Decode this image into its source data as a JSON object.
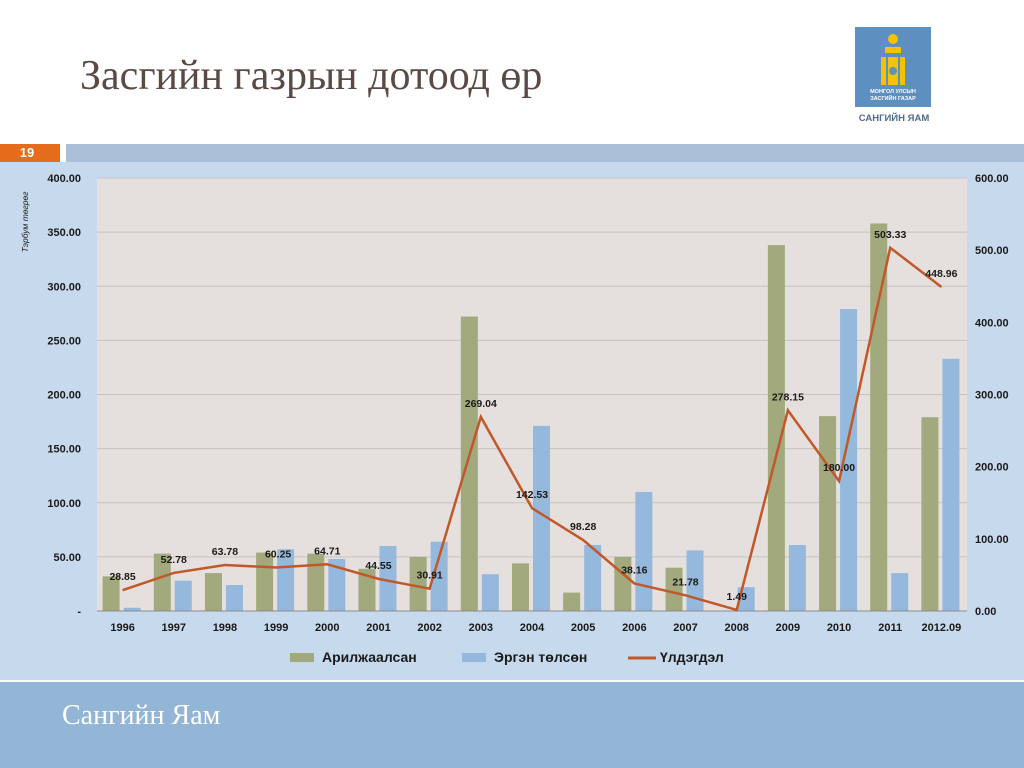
{
  "slide": {
    "title": "Засгийн газрын дотоод өр",
    "slide_number": "19",
    "ministry_caption": "САНГИЙН ЯАМ",
    "emblem_text": [
      "МОНГОЛ УЛСЫН",
      "ЗАСГИЙН ГАЗАР"
    ],
    "footer_text": "Сангийн Яам"
  },
  "colors": {
    "title": "#5b4a44",
    "accent_orange": "#e46c1a",
    "band_blue": "#a9c0d8",
    "chart_bg": "#c7d9ec",
    "plot_bg": "#e5e0dd",
    "footer_bg": "#93b6d6",
    "emblem_bg": "#5e8fc1",
    "series_green": "#a1a97d",
    "series_blue": "#94b9dc",
    "series_orange": "#c0582a"
  },
  "chart_data": {
    "type": "bar",
    "categories": [
      "1996",
      "1997",
      "1998",
      "1999",
      "2000",
      "2001",
      "2002",
      "2003",
      "2004",
      "2005",
      "2006",
      "2007",
      "2008",
      "2009",
      "2010",
      "2011",
      "2012.09"
    ],
    "ylabel": "Тэрбум төгрөг",
    "ylim": [
      0,
      400
    ],
    "y2lim": [
      0,
      600
    ],
    "y_ticks": [
      "-",
      "50.00",
      "100.00",
      "150.00",
      "200.00",
      "250.00",
      "300.00",
      "350.00",
      "400.00"
    ],
    "y2_ticks": [
      "0.00",
      "100.00",
      "200.00",
      "300.00",
      "400.00",
      "500.00",
      "600.00"
    ],
    "legend_position": "bottom",
    "gridlines": true,
    "series": [
      {
        "name": "Арилжаалсан",
        "type": "bar",
        "axis": "left",
        "values": [
          32,
          53,
          35,
          54,
          53,
          39,
          50,
          272,
          44,
          17,
          50,
          40,
          0,
          338,
          180,
          358,
          179
        ]
      },
      {
        "name": "Эргэн төлсөн",
        "type": "bar",
        "axis": "left",
        "values": [
          3,
          28,
          24,
          57,
          48,
          60,
          64,
          34,
          171,
          61,
          110,
          56,
          22,
          61,
          279,
          35,
          233
        ]
      },
      {
        "name": "Үлдэгдэл",
        "type": "line",
        "axis": "right",
        "values": [
          28.85,
          52.78,
          63.78,
          60.25,
          64.71,
          44.55,
          30.91,
          269.04,
          142.53,
          98.28,
          38.16,
          21.78,
          1.49,
          278.15,
          180.0,
          503.33,
          448.96
        ],
        "labels": [
          "28.85",
          "52.78",
          "63.78",
          "60.25",
          "64.71",
          "44.55",
          "30.91",
          "269.04",
          "142.53",
          "98.28",
          "38.16",
          "21.78",
          "1.49",
          "278.15",
          "180.00",
          "503.33",
          "448.96"
        ]
      }
    ]
  }
}
